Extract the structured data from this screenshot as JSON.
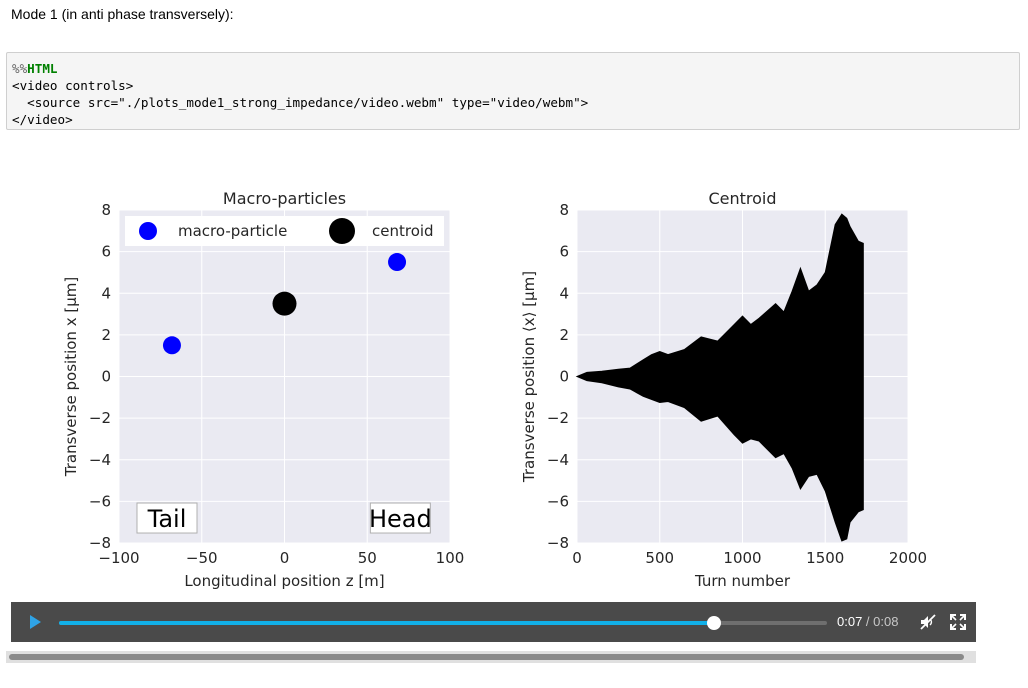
{
  "markdown": {
    "text": "Mode 1 (in anti phase transversely):"
  },
  "code": {
    "magic_prefix": "%%",
    "magic_keyword": "HTML",
    "lines": [
      "<video controls>",
      "  <source src=\"./plots_mode1_strong_impedance/video.webm\" type=\"video/webm\">",
      "</video>"
    ]
  },
  "video": {
    "current_time": "0:07",
    "separator": " / ",
    "duration": "0:08",
    "progress": 0.853,
    "muted": true
  },
  "chart_data": [
    {
      "type": "scatter",
      "title": "Macro-particles",
      "xlabel": "Longitudinal position z [m]",
      "ylabel": "Transverse position x [µm]",
      "xlim": [
        -100,
        100
      ],
      "ylim": [
        -8,
        8
      ],
      "xticks": [
        "−100",
        "−50",
        "0",
        "50",
        "100"
      ],
      "yticks": [
        "8",
        "6",
        "4",
        "2",
        "0",
        "−2",
        "−4",
        "−6",
        "−8"
      ],
      "grid": true,
      "legend_position": "top",
      "series": [
        {
          "name": "macro-particle",
          "color": "#0000ff",
          "x": [
            -68,
            68
          ],
          "y": [
            1.5,
            5.5
          ]
        },
        {
          "name": "centroid",
          "color": "#000000",
          "x": [
            0
          ],
          "y": [
            3.5
          ]
        }
      ],
      "annotations": [
        {
          "text": "Tail",
          "x": -71,
          "y": -6.8
        },
        {
          "text": "Head",
          "x": 70,
          "y": -6.8
        }
      ]
    },
    {
      "type": "area",
      "title": "Centroid",
      "xlabel": "Turn number",
      "ylabel": "Transverse position ⟨x⟩ [µm]",
      "xlim": [
        0,
        2000
      ],
      "ylim": [
        -8,
        8
      ],
      "xticks": [
        "0",
        "500",
        "1000",
        "1500",
        "2000"
      ],
      "yticks": [
        "8",
        "6",
        "4",
        "2",
        "0",
        "−2",
        "−4",
        "−6",
        "−8"
      ],
      "grid": true,
      "color": "#000000",
      "envelope": {
        "x": [
          0,
          60,
          150,
          250,
          320,
          400,
          450,
          500,
          550,
          650,
          750,
          850,
          950,
          1000,
          1050,
          1100,
          1200,
          1250,
          1300,
          1350,
          1400,
          1450,
          1500,
          1560,
          1600,
          1630,
          1650,
          1700,
          1730
        ],
        "upper": [
          0,
          0.2,
          0.25,
          0.35,
          0.4,
          0.8,
          1.05,
          1.2,
          1.05,
          1.3,
          1.9,
          1.7,
          2.5,
          2.9,
          2.5,
          2.8,
          3.5,
          3.1,
          4.1,
          5.2,
          4.1,
          4.4,
          5.0,
          7.3,
          7.8,
          7.6,
          7.2,
          6.5,
          6.4
        ],
        "lower": [
          0,
          -0.2,
          -0.3,
          -0.5,
          -0.6,
          -0.95,
          -1.1,
          -1.25,
          -1.2,
          -1.5,
          -2.15,
          -1.9,
          -2.8,
          -3.2,
          -3.0,
          -3.1,
          -3.9,
          -3.7,
          -4.4,
          -5.4,
          -4.8,
          -4.7,
          -5.5,
          -7.0,
          -7.9,
          -7.8,
          -7.0,
          -6.5,
          -6.4
        ]
      }
    }
  ],
  "icons": {
    "play": "play-icon",
    "mute": "muted-speaker-icon",
    "fullscreen": "fullscreen-icon"
  }
}
